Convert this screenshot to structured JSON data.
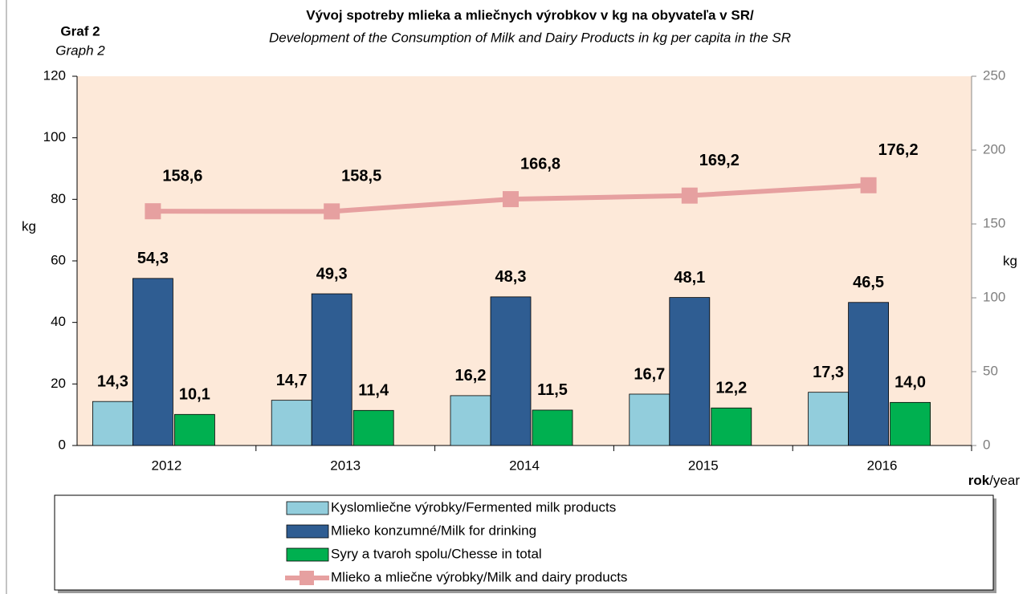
{
  "chart_data": {
    "type": "bar",
    "label": "Graf 2",
    "label_en": "Graph 2",
    "title": "Vývoj spotreby mlieka a mliečnych výrobkov v kg na obyvateľa v SR/",
    "subtitle": "Development of the Consumption of Milk and Dairy Products in kg per capita in the SR",
    "ylabel": "kg",
    "y2label": "kg",
    "xlabel_bold": "rok",
    "xlabel": "/year",
    "categories": [
      "2012",
      "2013",
      "2014",
      "2015",
      "2016"
    ],
    "ylim": [
      0,
      120
    ],
    "yticks": [
      0,
      20,
      40,
      60,
      80,
      100,
      120
    ],
    "y2lim": [
      0,
      250
    ],
    "y2ticks": [
      0,
      50,
      100,
      150,
      200,
      250
    ],
    "grid": false,
    "series": [
      {
        "name": "Kyslomliečne výrobky/Fermented milk products",
        "type": "bar",
        "color": "#92cddc",
        "values": [
          14.3,
          14.7,
          16.2,
          16.7,
          17.3
        ],
        "value_labels": [
          "14,3",
          "14,7",
          "16,2",
          "16,7",
          "17,3"
        ]
      },
      {
        "name": "Mlieko konzumné/Milk for drinking",
        "type": "bar",
        "color": "#2f5d92",
        "values": [
          54.3,
          49.3,
          48.3,
          48.1,
          46.5
        ],
        "value_labels": [
          "54,3",
          "49,3",
          "48,3",
          "48,1",
          "46,5"
        ]
      },
      {
        "name": "Syry a tvaroh spolu/Chesse in total",
        "type": "bar",
        "color": "#00b050",
        "values": [
          10.1,
          11.4,
          11.5,
          12.2,
          14.0
        ],
        "value_labels": [
          "10,1",
          "11,4",
          "11,5",
          "12,2",
          "14,0"
        ]
      },
      {
        "name": "Mlieko a mliečne výrobky/Milk and dairy products",
        "type": "line",
        "axis": "y2",
        "color": "#e6a0a0",
        "values": [
          158.6,
          158.5,
          166.8,
          169.2,
          176.2
        ],
        "value_labels": [
          "158,6",
          "158,5",
          "166,8",
          "169,2",
          "176,2"
        ]
      }
    ]
  }
}
